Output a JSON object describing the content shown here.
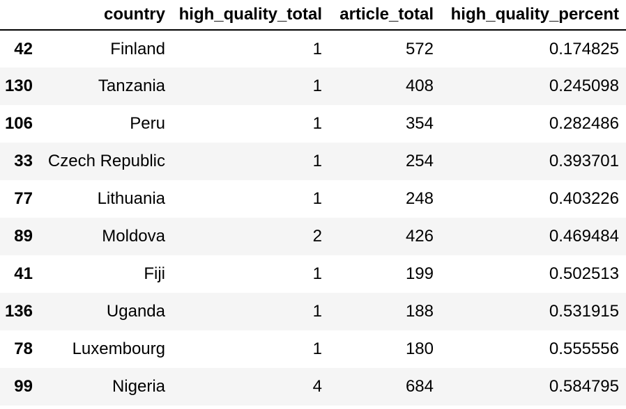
{
  "table": {
    "columns": [
      "",
      "country",
      "high_quality_total",
      "article_total",
      "high_quality_percent"
    ],
    "rows": [
      {
        "index": "42",
        "country": "Finland",
        "high_quality_total": "1",
        "article_total": "572",
        "high_quality_percent": "0.174825"
      },
      {
        "index": "130",
        "country": "Tanzania",
        "high_quality_total": "1",
        "article_total": "408",
        "high_quality_percent": "0.245098"
      },
      {
        "index": "106",
        "country": "Peru",
        "high_quality_total": "1",
        "article_total": "354",
        "high_quality_percent": "0.282486"
      },
      {
        "index": "33",
        "country": "Czech Republic",
        "high_quality_total": "1",
        "article_total": "254",
        "high_quality_percent": "0.393701"
      },
      {
        "index": "77",
        "country": "Lithuania",
        "high_quality_total": "1",
        "article_total": "248",
        "high_quality_percent": "0.403226"
      },
      {
        "index": "89",
        "country": "Moldova",
        "high_quality_total": "2",
        "article_total": "426",
        "high_quality_percent": "0.469484"
      },
      {
        "index": "41",
        "country": "Fiji",
        "high_quality_total": "1",
        "article_total": "199",
        "high_quality_percent": "0.502513"
      },
      {
        "index": "136",
        "country": "Uganda",
        "high_quality_total": "1",
        "article_total": "188",
        "high_quality_percent": "0.531915"
      },
      {
        "index": "78",
        "country": "Luxembourg",
        "high_quality_total": "1",
        "article_total": "180",
        "high_quality_percent": "0.555556"
      },
      {
        "index": "99",
        "country": "Nigeria",
        "high_quality_total": "4",
        "article_total": "684",
        "high_quality_percent": "0.584795"
      }
    ]
  },
  "colors": {
    "stripe": "#f5f5f5",
    "header_rule": "#000000",
    "text": "#000000"
  }
}
